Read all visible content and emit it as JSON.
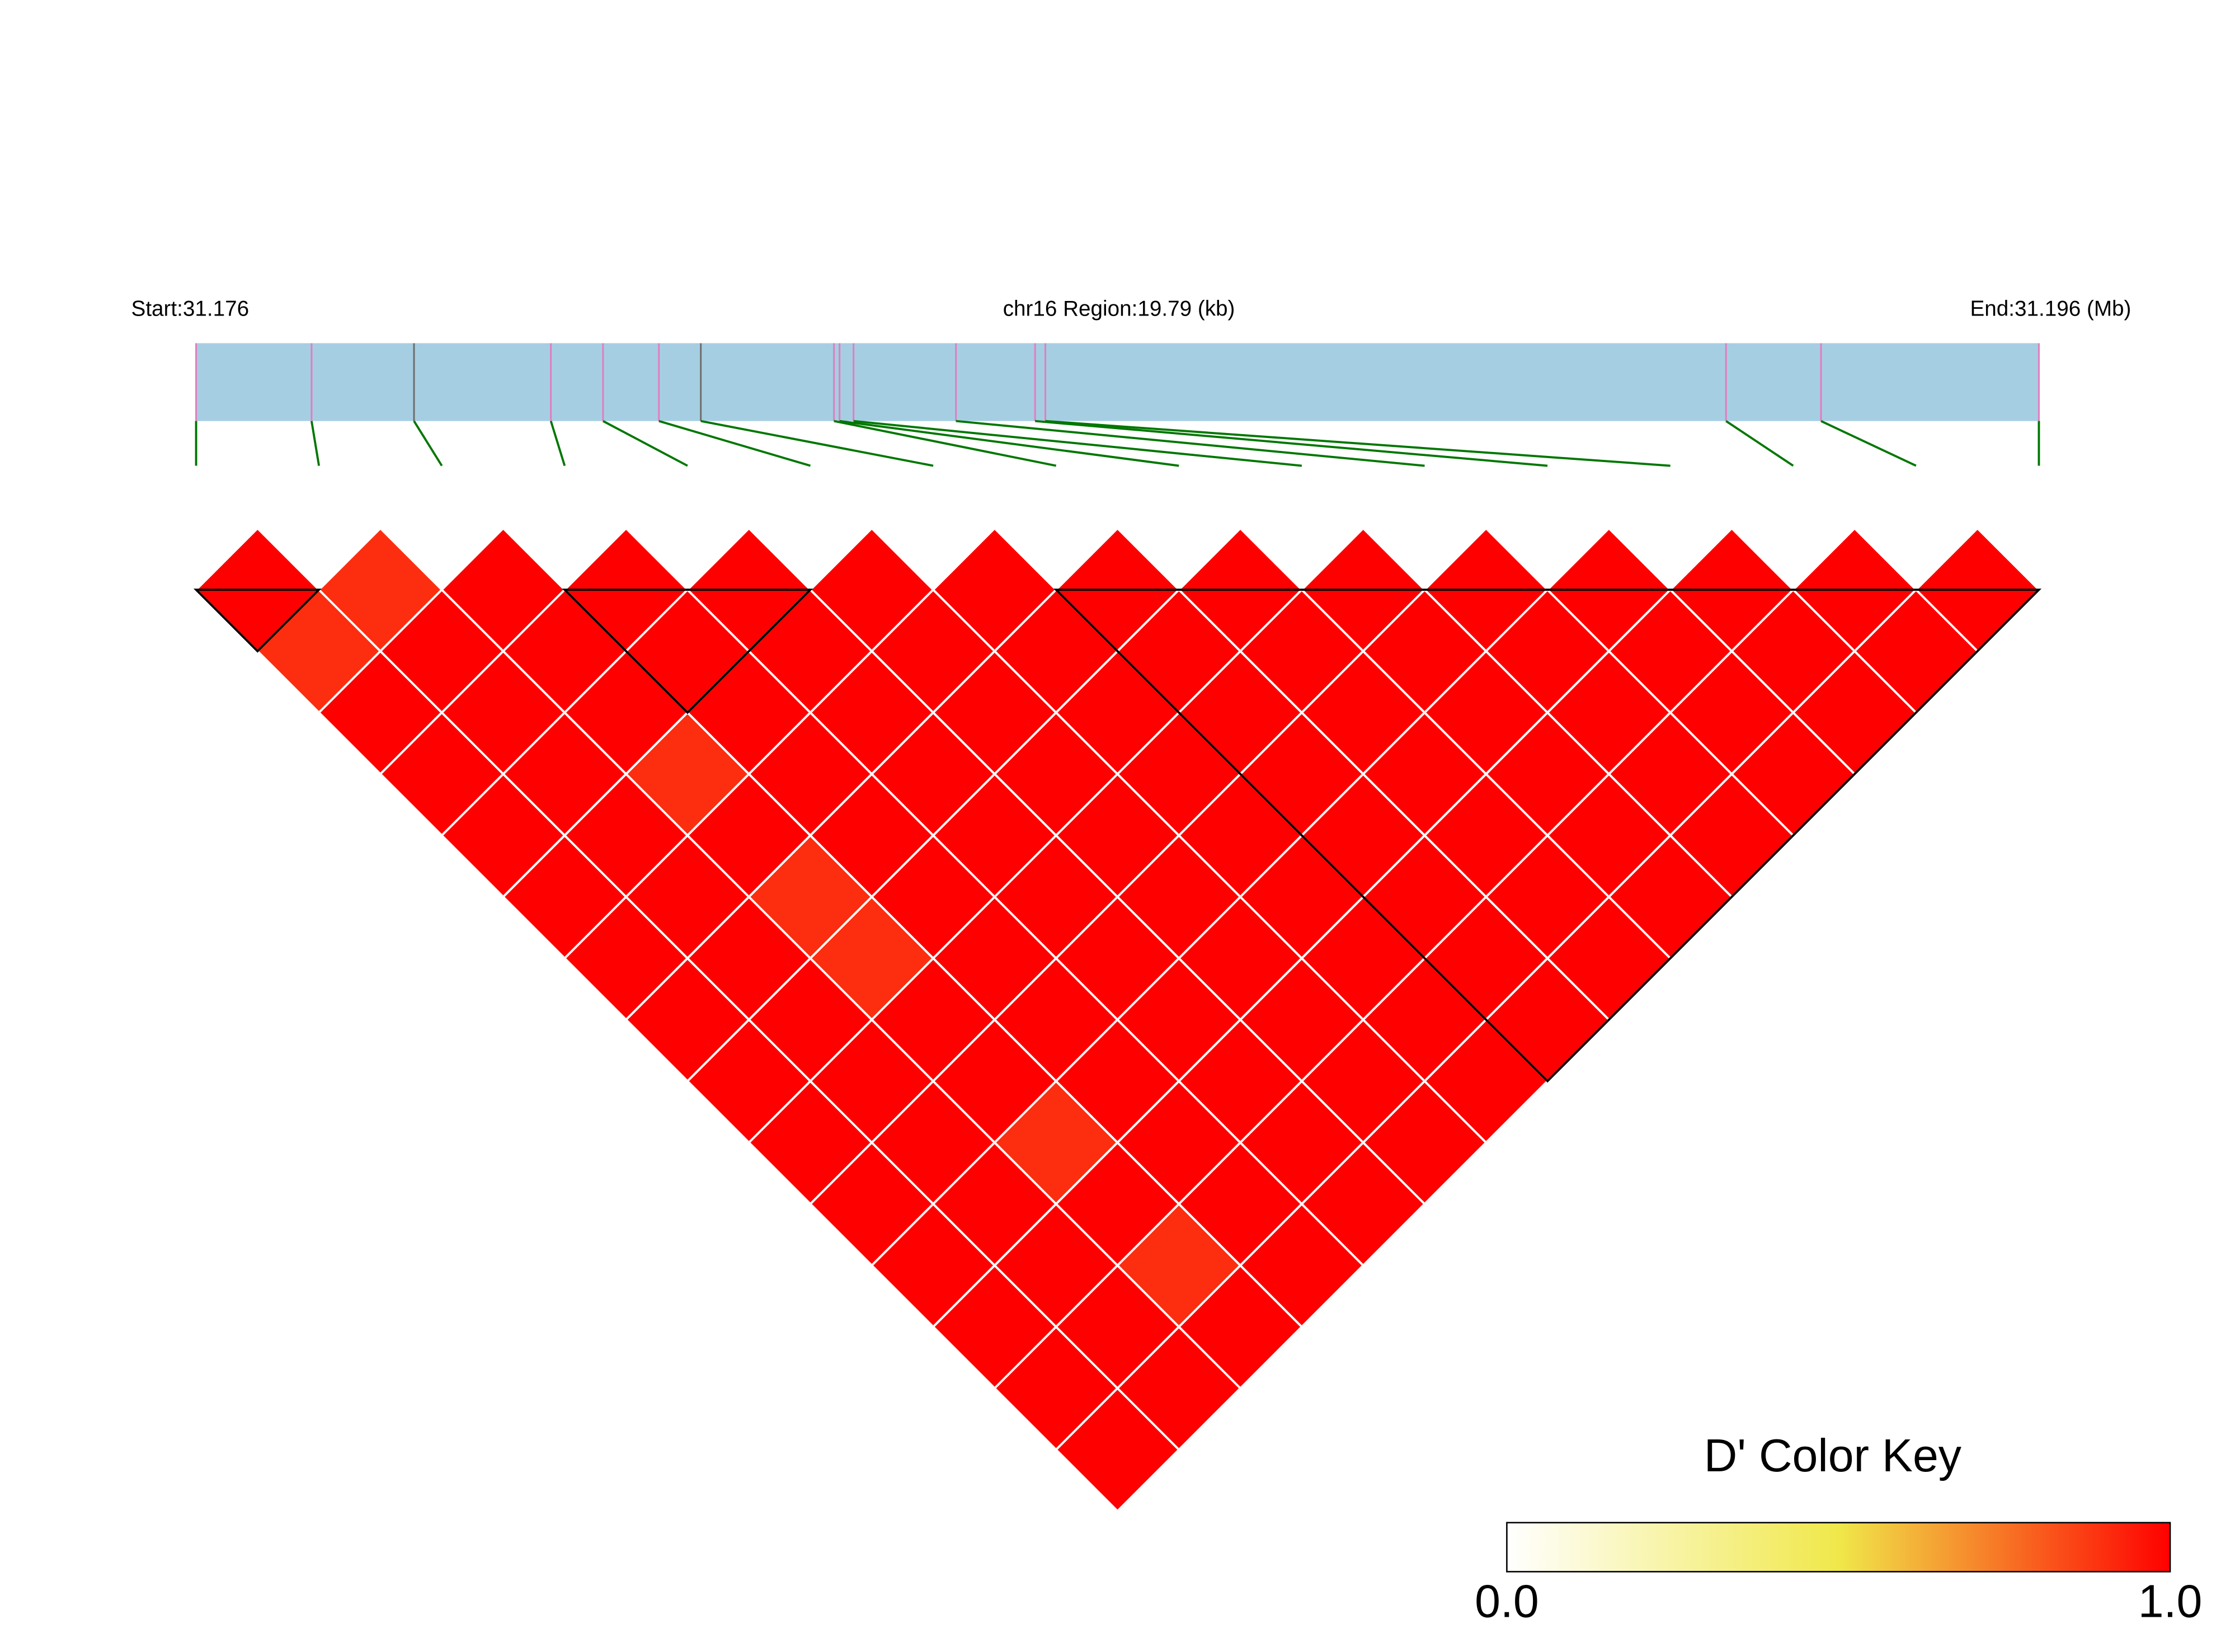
{
  "chart_data": {
    "type": "ld_heatmap",
    "start_label": "Start:31.176",
    "region_label": "chr16 Region:19.79 (kb)",
    "end_label": "End:31.196 (Mb)",
    "positions": [
      31.176,
      31.17724,
      31.17834,
      31.17981,
      31.18037,
      31.18097,
      31.18142,
      31.18285,
      31.18291,
      31.18306,
      31.18416,
      31.18501,
      31.18512,
      31.19243,
      31.19345,
      31.19579
    ],
    "bar_color": "#a6cee3",
    "snp_line_color": "#e07fc0",
    "highlight_snps": [
      2,
      6
    ],
    "highlight_color": "#707070",
    "connector_color": "#007700",
    "dprime": [
      [
        1,
        0.9,
        1,
        1,
        1,
        1,
        1,
        1,
        1,
        1,
        1,
        1,
        1,
        1,
        1
      ],
      [
        0.9,
        1,
        1,
        1,
        1,
        1,
        1,
        1,
        1,
        1,
        1,
        1,
        1,
        1
      ],
      [
        1,
        1,
        1,
        0.9,
        1,
        0.9,
        0.9,
        1,
        1,
        0.9,
        1,
        0.9,
        1
      ],
      [
        1,
        1,
        1,
        1,
        1,
        1,
        1,
        1,
        1,
        1,
        1,
        1
      ],
      [
        1,
        1,
        1,
        1,
        1,
        1,
        1,
        1,
        1,
        1,
        1
      ],
      [
        1,
        1,
        1,
        1,
        1,
        1,
        1,
        1,
        1,
        1
      ],
      [
        1,
        1,
        1,
        1,
        1,
        1,
        1,
        1,
        1
      ],
      [
        1,
        1,
        1,
        1,
        1,
        1,
        1,
        1
      ],
      [
        1,
        1,
        1,
        1,
        1,
        1,
        1
      ],
      [
        1,
        1,
        1,
        1,
        1,
        1
      ],
      [
        1,
        1,
        1,
        1,
        1
      ],
      [
        1,
        1,
        1,
        1
      ],
      [
        1,
        1,
        1
      ],
      [
        1,
        1
      ],
      [
        1
      ]
    ],
    "blocks": [
      [
        0,
        1
      ],
      [
        3,
        5
      ],
      [
        7,
        15
      ]
    ],
    "color_key_title": "D' Color Key",
    "color_key_colors": [
      "#ffffff",
      "#f0e84a",
      "#ff0000"
    ],
    "color_key_lim": [
      0,
      1
    ],
    "color_key_ticks": [
      {
        "value": 0,
        "label": "0.0"
      },
      {
        "value": 1,
        "label": "1.0"
      }
    ]
  }
}
